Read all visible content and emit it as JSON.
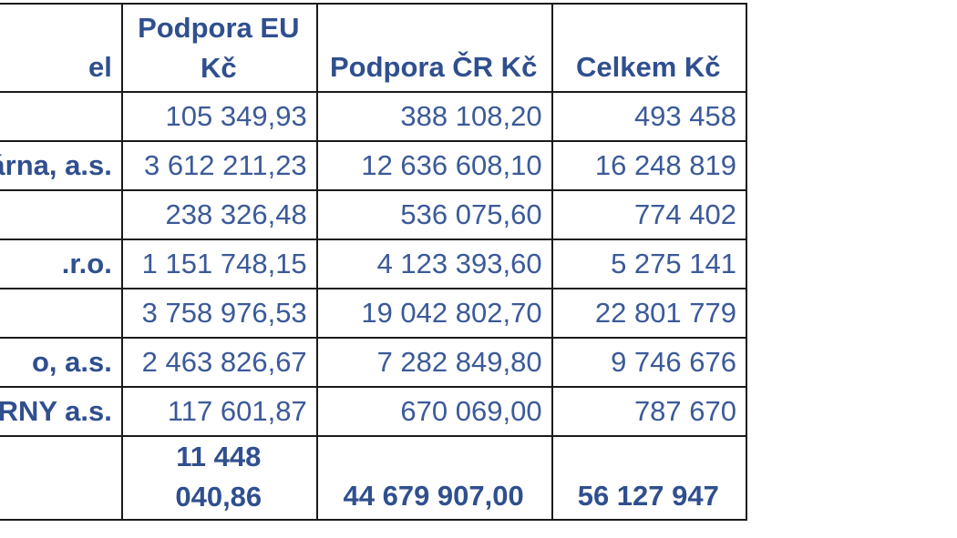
{
  "table": {
    "headers": {
      "name": "el",
      "eu": "Podpora EU Kč",
      "cr": "Podpora ČR Kč",
      "total": "Celkem Kč"
    },
    "rows": [
      {
        "name": "",
        "eu": "105 349,93",
        "cr": "388 108,20",
        "total": "493 458"
      },
      {
        "name": "ekárna, a.s.",
        "eu": "3 612 211,23",
        "cr": "12 636 608,10",
        "total": "16 248 819"
      },
      {
        "name": "",
        "eu": "238 326,48",
        "cr": "536 075,60",
        "total": "774 402"
      },
      {
        "name": ".r.o.",
        "eu": "1 151 748,15",
        "cr": "4 123 393,60",
        "total": "5 275 141"
      },
      {
        "name": "",
        "eu": "3 758 976,53",
        "cr": "19 042 802,70",
        "total": "22 801 779"
      },
      {
        "name": "o, a.s.",
        "eu": "2 463 826,67",
        "cr": "7 282 849,80",
        "total": "9 746 676"
      },
      {
        "name": "ÁRNY a.s.",
        "eu": "117 601,87",
        "cr": "670 069,00",
        "total": "787 670"
      }
    ],
    "totals": {
      "eu": "11 448 040,86",
      "cr": "44 679 907,00",
      "total": "56 127 947"
    }
  },
  "colors": {
    "text": "#2f4f8f",
    "border": "#1a1a1a",
    "background": "#ffffff"
  }
}
